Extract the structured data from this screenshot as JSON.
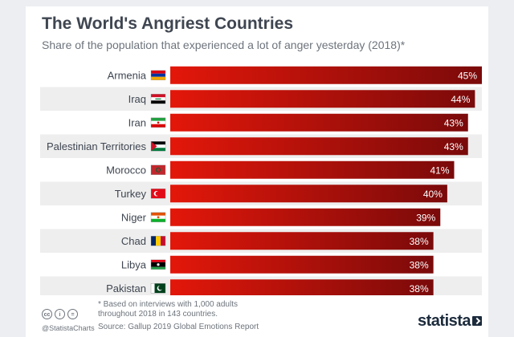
{
  "title": "The World's Angriest Countries",
  "subtitle": "Share of the population that experienced a lot of anger yesterday (2018)*",
  "footnote": "* Based on interviews with 1,000 adults throughout 2018 in 143 countries.",
  "source": "Source: Gallup 2019 Global Emotions Report",
  "handle": "@StatistaCharts",
  "logo": "statista",
  "colors": {
    "bar_start": "#e3170a",
    "bar_end": "#7a0a0a",
    "stripe": "#eeeeee",
    "text": "#3f4651"
  },
  "chart_data": {
    "type": "bar",
    "orientation": "horizontal",
    "categories": [
      "Armenia",
      "Iraq",
      "Iran",
      "Palestinian Territories",
      "Morocco",
      "Turkey",
      "Niger",
      "Chad",
      "Libya",
      "Pakistan"
    ],
    "values": [
      45,
      44,
      43,
      43,
      41,
      40,
      39,
      38,
      38,
      38
    ],
    "value_labels": [
      "45%",
      "44%",
      "43%",
      "43%",
      "41%",
      "40%",
      "39%",
      "38%",
      "38%",
      "38%"
    ],
    "flags": [
      "flag-armenia-icon",
      "flag-iraq-icon",
      "flag-iran-icon",
      "flag-palestine-icon",
      "flag-morocco-icon",
      "flag-turkey-icon",
      "flag-niger-icon",
      "flag-chad-icon",
      "flag-libya-icon",
      "flag-pakistan-icon"
    ],
    "xlim": [
      0,
      45
    ],
    "grid": false,
    "legend": "none"
  }
}
